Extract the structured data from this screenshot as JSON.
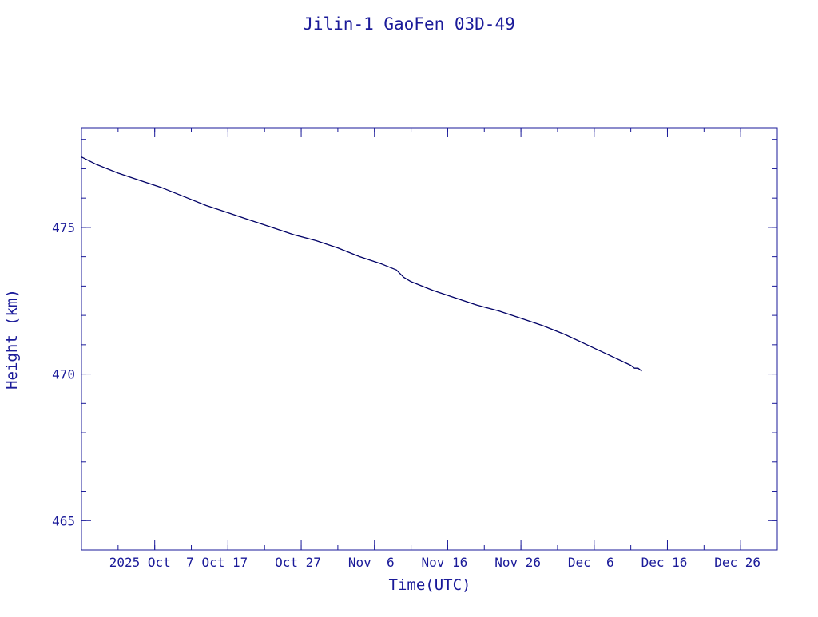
{
  "colors": {
    "ink": "#1a1a99",
    "line": "#000066",
    "background": "#ffffff"
  },
  "chart_data": {
    "type": "line",
    "title": "Jilin-1 GaoFen 03D-49",
    "xlabel": "Time(UTC)",
    "ylabel": "Height (km)",
    "x_type": "date",
    "xlim": [
      "2025-09-27",
      "2025-12-31"
    ],
    "ylim": [
      464,
      478.4
    ],
    "x_ticks": [
      {
        "date": "2025-10-07",
        "label": "2025 Oct  7"
      },
      {
        "date": "2025-10-17",
        "label": "Oct 17"
      },
      {
        "date": "2025-10-27",
        "label": "Oct 27"
      },
      {
        "date": "2025-11-06",
        "label": "Nov  6"
      },
      {
        "date": "2025-11-16",
        "label": "Nov 16"
      },
      {
        "date": "2025-11-26",
        "label": "Nov 26"
      },
      {
        "date": "2025-12-06",
        "label": "Dec  6"
      },
      {
        "date": "2025-12-16",
        "label": "Dec 16"
      },
      {
        "date": "2025-12-26",
        "label": "Dec 26"
      }
    ],
    "y_ticks": [
      {
        "value": 465,
        "label": "465"
      },
      {
        "value": 470,
        "label": "470"
      },
      {
        "value": 475,
        "label": "475"
      }
    ],
    "y_minor_step": 1,
    "x_minor_step_days": 5,
    "grid": false,
    "series": [
      {
        "points": [
          [
            "2025-09-27T00:00",
            477.4
          ],
          [
            "2025-09-29T00:00",
            477.15
          ],
          [
            "2025-10-02T00:00",
            476.85
          ],
          [
            "2025-10-05T00:00",
            476.6
          ],
          [
            "2025-10-08T00:00",
            476.35
          ],
          [
            "2025-10-11T00:00",
            476.05
          ],
          [
            "2025-10-14T00:00",
            475.75
          ],
          [
            "2025-10-17T00:00",
            475.5
          ],
          [
            "2025-10-20T00:00",
            475.25
          ],
          [
            "2025-10-23T00:00",
            475.0
          ],
          [
            "2025-10-26T00:00",
            474.75
          ],
          [
            "2025-10-29T00:00",
            474.55
          ],
          [
            "2025-11-01T00:00",
            474.3
          ],
          [
            "2025-11-04T00:00",
            474.0
          ],
          [
            "2025-11-07T00:00",
            473.75
          ],
          [
            "2025-11-09T00:00",
            473.55
          ],
          [
            "2025-11-10T00:00",
            473.3
          ],
          [
            "2025-11-11T00:00",
            473.15
          ],
          [
            "2025-11-14T00:00",
            472.85
          ],
          [
            "2025-11-17T00:00",
            472.6
          ],
          [
            "2025-11-20T00:00",
            472.35
          ],
          [
            "2025-11-23T00:00",
            472.15
          ],
          [
            "2025-11-26T00:00",
            471.9
          ],
          [
            "2025-11-29T00:00",
            471.65
          ],
          [
            "2025-12-02T00:00",
            471.35
          ],
          [
            "2025-12-05T00:00",
            471.0
          ],
          [
            "2025-12-08T00:00",
            470.65
          ],
          [
            "2025-12-11T00:00",
            470.3
          ],
          [
            "2025-12-11T12:00",
            470.2
          ],
          [
            "2025-12-12T00:00",
            470.2
          ],
          [
            "2025-12-12T12:00",
            470.1
          ]
        ]
      }
    ]
  }
}
